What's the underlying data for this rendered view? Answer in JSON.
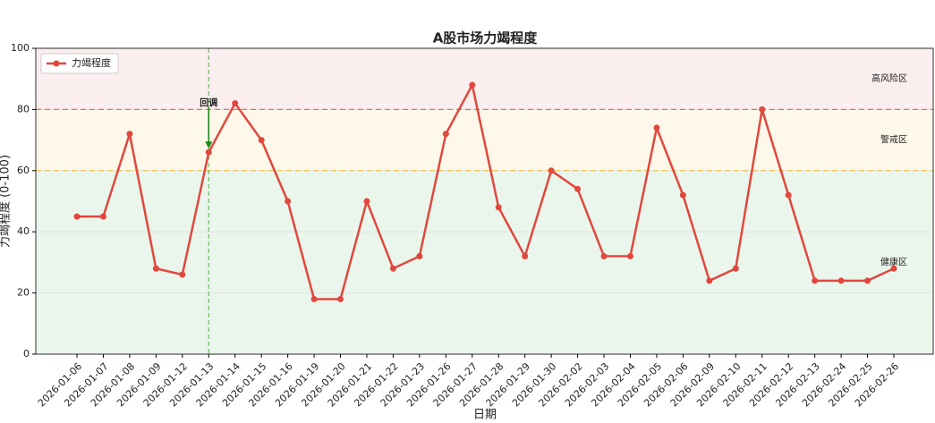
{
  "chart_data": {
    "type": "line",
    "title": "A股市场力竭程度",
    "x_label": "日期",
    "y_label": "力竭程度 (0-100)",
    "categories": [
      "2026-01-06",
      "2026-01-07",
      "2026-01-08",
      "2026-01-09",
      "2026-01-12",
      "2026-01-13",
      "2026-01-14",
      "2026-01-15",
      "2026-01-16",
      "2026-01-19",
      "2026-01-20",
      "2026-01-21",
      "2026-01-22",
      "2026-01-23",
      "2026-01-26",
      "2026-01-27",
      "2026-01-28",
      "2026-01-29",
      "2026-01-30",
      "2026-02-02",
      "2026-02-03",
      "2026-02-04",
      "2026-02-05",
      "2026-02-06",
      "2026-02-09",
      "2026-02-10",
      "2026-02-11",
      "2026-02-12",
      "2026-02-13",
      "2026-02-24",
      "2026-02-25",
      "2026-02-26"
    ],
    "series": [
      {
        "name": "力竭程度",
        "color": "#e0483e",
        "values": [
          45,
          45,
          72,
          28,
          26,
          66,
          82,
          70,
          50,
          18,
          18,
          50,
          28,
          32,
          72,
          88,
          48,
          32,
          60,
          54,
          32,
          32,
          74,
          52,
          24,
          28,
          80,
          52,
          24,
          24,
          24,
          28
        ]
      }
    ],
    "ylim": [
      0,
      100
    ],
    "yticks": [
      0,
      20,
      40,
      60,
      80,
      100
    ],
    "grid": true,
    "legend": "upper left",
    "zones": [
      {
        "name": "健康区",
        "from": 0,
        "to": 60,
        "color": "#eaf6ec",
        "text_color": "#3aa85a"
      },
      {
        "name": "警戒区",
        "from": 60,
        "to": 80,
        "color": "#fdf8ea",
        "text_color": "#e8c020"
      },
      {
        "name": "高风险区",
        "from": 80,
        "to": 100,
        "color": "#fbeeee",
        "text_color": "#d04a5a"
      }
    ],
    "thresholds": [
      {
        "value": 60,
        "color": "#f0c040"
      },
      {
        "value": 80,
        "color": "#e07070"
      }
    ],
    "annotations": [
      {
        "text": "回调",
        "x": "2026-01-13",
        "color": "#1a8a1a"
      }
    ]
  }
}
